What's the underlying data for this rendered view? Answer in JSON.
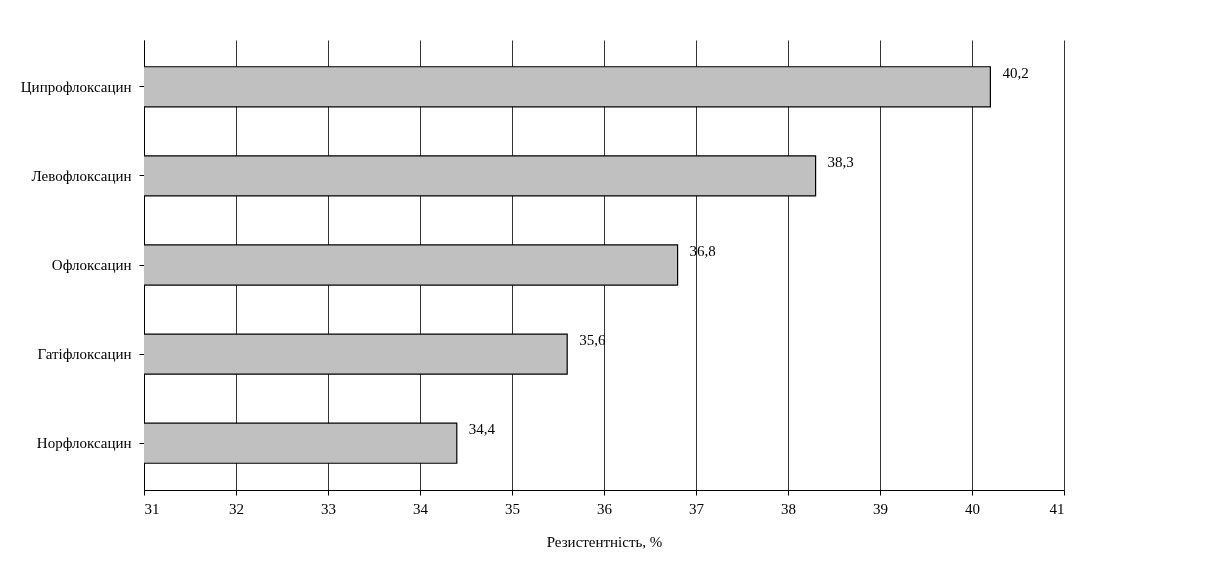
{
  "chart_data": {
    "type": "bar",
    "orientation": "horizontal",
    "xlabel": "Резистентність, %",
    "categories": [
      "Ципрофлоксацин",
      "Левофлоксацин",
      "Офлоксацин",
      "Гатіфлоксацин",
      "Норфлоксацин"
    ],
    "values": [
      40.2,
      38.3,
      36.8,
      35.6,
      34.4
    ],
    "value_labels": [
      "40,2",
      "38,3",
      "36,8",
      "35,6",
      "34,4"
    ],
    "color": "#c0c0c0",
    "xlim": [
      31,
      41
    ],
    "xticks": [
      31,
      32,
      33,
      34,
      35,
      36,
      37,
      38,
      39,
      40,
      41
    ],
    "grid": "x"
  }
}
